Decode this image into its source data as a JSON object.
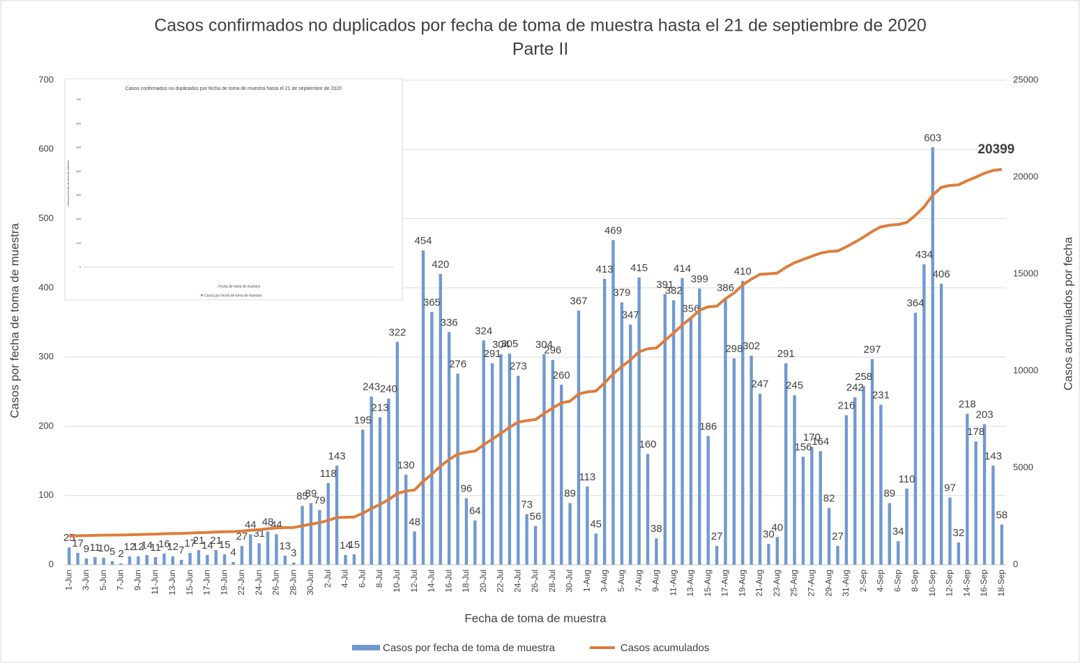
{
  "chart_data": [
    {
      "type": "bar",
      "title": "Casos confirmados no duplicados por fecha de toma de muestra hasta el 21 de septiembre de 2020",
      "subtitle": "Parte II",
      "xlabel": "Fecha de toma de muestra",
      "ylabel": "Casos por fecha de toma de muestra",
      "y2label": "Casos acumulados por fecha",
      "categories": [
        "1-Jun",
        null,
        "3-Jun",
        null,
        "5-Jun",
        null,
        "7-Jun",
        null,
        "9-Jun",
        null,
        "11-Jun",
        null,
        "13-Jun",
        null,
        "15-Jun",
        null,
        "17-Jun",
        null,
        "19-Jun",
        null,
        "22-Jun",
        null,
        "24-Jun",
        null,
        "26-Jun",
        null,
        "28-Jun",
        null,
        "30-Jun",
        null,
        "2-Jul",
        null,
        "4-Jul",
        null,
        "6-Jul",
        null,
        "8-Jul",
        null,
        "10-Jul",
        null,
        "12-Jul",
        null,
        "14-Jul",
        null,
        "16-Jul",
        null,
        "18-Jul",
        null,
        "20-Jul",
        null,
        "22-Jul",
        null,
        "24-Jul",
        null,
        "26-Jul",
        null,
        "28-Jul",
        null,
        "30-Jul",
        null,
        "1-Aug",
        null,
        "3-Aug",
        null,
        "5-Aug",
        null,
        "7-Aug",
        null,
        "9-Aug",
        null,
        "11-Aug",
        null,
        "13-Aug",
        null,
        "15-Aug",
        null,
        "17-Aug",
        null,
        "19-Aug",
        null,
        "21-Aug",
        null,
        "23-Aug",
        null,
        "25-Aug",
        null,
        "27-Aug",
        null,
        "29-Aug",
        null,
        "31-Aug",
        null,
        "2-Sep",
        null,
        "4-Sep",
        null,
        "6-Sep",
        null,
        "8-Sep",
        null,
        "10-Sep",
        null,
        "12-Sep",
        null,
        "14-Sep",
        null,
        "16-Sep",
        null,
        "18-Sep"
      ],
      "series": [
        {
          "name": "Casos por fecha de toma de muestra",
          "color": "#7099d0",
          "values": [
            25,
            17,
            9,
            11,
            10,
            5,
            2,
            12,
            12,
            14,
            11,
            16,
            12,
            7,
            17,
            21,
            14,
            21,
            15,
            4,
            27,
            44,
            31,
            48,
            44,
            13,
            3,
            85,
            89,
            79,
            118,
            143,
            14,
            15,
            195,
            243,
            213,
            240,
            322,
            130,
            48,
            454,
            365,
            420,
            336,
            276,
            96,
            64,
            324,
            291,
            304,
            305,
            273,
            73,
            56,
            304,
            296,
            260,
            89,
            367,
            113,
            45,
            413,
            469,
            379,
            347,
            415,
            160,
            38,
            391,
            382,
            414,
            356,
            399,
            186,
            27,
            386,
            298,
            410,
            302,
            247,
            30,
            40,
            291,
            245,
            156,
            170,
            164,
            82,
            27,
            216,
            242,
            258,
            297,
            231,
            89,
            34,
            110,
            364,
            434,
            603,
            406,
            97,
            32,
            218,
            178,
            203,
            143,
            58
          ]
        },
        {
          "name": "Casos acumulados",
          "color": "#dd7d3c",
          "type": "line",
          "axis": "y2",
          "values": [
            1477,
            1494,
            1503,
            1514,
            1524,
            1529,
            1531,
            1543,
            1555,
            1569,
            1580,
            1596,
            1608,
            1615,
            1632,
            1653,
            1667,
            1688,
            1703,
            1707,
            1734,
            1778,
            1809,
            1857,
            1901,
            1914,
            1917,
            2002,
            2091,
            2170,
            2288,
            2431,
            2445,
            2460,
            2655,
            2898,
            3111,
            3351,
            3673,
            3803,
            3851,
            4305,
            4670,
            5090,
            5426,
            5702,
            5798,
            5862,
            6186,
            6477,
            6781,
            7086,
            7359,
            7432,
            7488,
            7792,
            8088,
            8348,
            8437,
            8804,
            8917,
            8962,
            9375,
            9844,
            10223,
            10570,
            10985,
            11145,
            11183,
            11574,
            11956,
            12370,
            12726,
            13125,
            13311,
            13338,
            13724,
            14022,
            14432,
            14734,
            14981,
            15011,
            15051,
            15342,
            15587,
            15743,
            15913,
            16077,
            16159,
            16186,
            16402,
            16644,
            16902,
            17199,
            17430,
            17519,
            17553,
            17663,
            18027,
            18461,
            19064,
            19470,
            19567,
            19599,
            19817,
            19995,
            20198,
            20341,
            20399
          ]
        }
      ],
      "ylim": [
        0,
        700
      ],
      "yticks": [
        0,
        100,
        200,
        300,
        400,
        500,
        600,
        700
      ],
      "y2lim": [
        0,
        25000
      ],
      "y2ticks": [
        0,
        5000,
        10000,
        15000,
        20000,
        25000
      ],
      "grid": true,
      "legend": "bottom"
    },
    {
      "type": "bar",
      "title": "Casos confirmados no duplicados por fecha de toma de muestra hasta el 21 de septiembre de 2020",
      "xlabel": "Fecha de toma de muestra",
      "ylabel": "Casos por fecha de toma de muestra",
      "series": [
        {
          "name": "Casos por fecha de toma de muestra",
          "color": "#7099d0"
        }
      ],
      "ylim": [
        0,
        700
      ],
      "yticks": [
        0,
        100,
        200,
        300,
        400,
        500,
        600,
        700
      ]
    }
  ]
}
